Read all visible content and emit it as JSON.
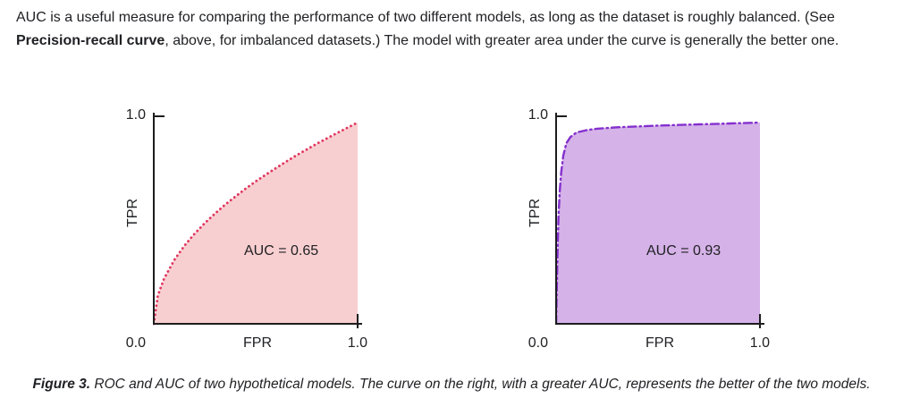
{
  "intro": {
    "line1": "AUC is a useful measure for comparing the performance of two different models, as long as the dataset is roughly balanced. (See",
    "line2_bold": "Precision-recall curve",
    "line2_rest": ", above, for imbalanced datasets.) The model with greater area under the curve is generally the better one."
  },
  "caption": {
    "label": "Figure 3.",
    "text": " ROC and AUC of two hypothetical models. The curve on the right, with a greater AUC, represents the better of the two models."
  },
  "chart_data": [
    {
      "type": "area",
      "name": "roc-curve-model-1",
      "title": "",
      "xlabel": "FPR",
      "ylabel": "TPR",
      "xlim": [
        0,
        1
      ],
      "ylim": [
        0,
        1
      ],
      "x_tick_labels": {
        "origin": "0.0",
        "max": "1.0"
      },
      "y_tick_labels": {
        "max": "1.0"
      },
      "grid": false,
      "annotation": "AUC = 0.65",
      "auc": 0.65,
      "line_style": "dotted",
      "line_color": "#e0355f",
      "fill_color": "#f8cfd0",
      "x": [
        0,
        0.02,
        0.05,
        0.1,
        0.15,
        0.2,
        0.25,
        0.3,
        0.35,
        0.4,
        0.45,
        0.5,
        0.55,
        0.6,
        0.65,
        0.7,
        0.75,
        0.8,
        0.85,
        0.9,
        0.95,
        1
      ],
      "y": [
        0,
        0.137,
        0.217,
        0.307,
        0.376,
        0.434,
        0.485,
        0.531,
        0.574,
        0.613,
        0.651,
        0.686,
        0.719,
        0.751,
        0.782,
        0.812,
        0.84,
        0.868,
        0.894,
        0.92,
        0.945,
        0.97
      ]
    },
    {
      "type": "area",
      "name": "roc-curve-model-2",
      "title": "",
      "xlabel": "FPR",
      "ylabel": "TPR",
      "xlim": [
        0,
        1
      ],
      "ylim": [
        0,
        1
      ],
      "x_tick_labels": {
        "origin": "0.0",
        "max": "1.0"
      },
      "y_tick_labels": {
        "max": "1.0"
      },
      "grid": false,
      "annotation": "AUC = 0.93",
      "auc": 0.93,
      "line_style": "dashdot",
      "line_color": "#8430ce",
      "fill_color": "#d5b2e8",
      "x": [
        0,
        0.004,
        0.008,
        0.012,
        0.018,
        0.025,
        0.035,
        0.05,
        0.07,
        0.1,
        0.15,
        0.2,
        0.3,
        0.4,
        0.5,
        0.6,
        0.7,
        0.8,
        0.9,
        1
      ],
      "y": [
        0,
        0.2,
        0.38,
        0.52,
        0.64,
        0.73,
        0.81,
        0.87,
        0.9,
        0.922,
        0.933,
        0.94,
        0.947,
        0.951,
        0.955,
        0.958,
        0.961,
        0.964,
        0.967,
        0.97
      ]
    }
  ]
}
